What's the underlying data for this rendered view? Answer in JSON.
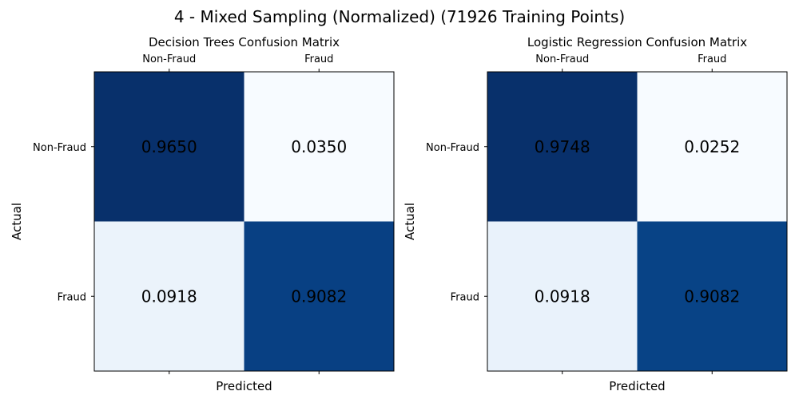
{
  "figure": {
    "title": "4 - Mixed Sampling (Normalized) (71926 Training Points)"
  },
  "chart_data": [
    {
      "type": "heatmap",
      "title": "Decision Trees Confusion Matrix",
      "xlabel": "Predicted",
      "ylabel": "Actual",
      "x_categories": [
        "Non-Fraud",
        "Fraud"
      ],
      "y_categories": [
        "Non-Fraud",
        "Fraud"
      ],
      "values": [
        [
          0.965,
          0.035
        ],
        [
          0.0918,
          0.9082
        ]
      ],
      "cell_labels": [
        [
          "0.9650",
          "0.0350"
        ],
        [
          "0.0918",
          "0.9082"
        ]
      ],
      "colormap": "Blues",
      "x_tick_position": "top"
    },
    {
      "type": "heatmap",
      "title": "Logistic Regression Confusion Matrix",
      "xlabel": "Predicted",
      "ylabel": "Actual",
      "x_categories": [
        "Non-Fraud",
        "Fraud"
      ],
      "y_categories": [
        "Non-Fraud",
        "Fraud"
      ],
      "values": [
        [
          0.9748,
          0.0252
        ],
        [
          0.0918,
          0.9082
        ]
      ],
      "cell_labels": [
        [
          "0.9748",
          "0.0252"
        ],
        [
          "0.0918",
          "0.9082"
        ]
      ],
      "colormap": "Blues",
      "x_tick_position": "top"
    }
  ]
}
